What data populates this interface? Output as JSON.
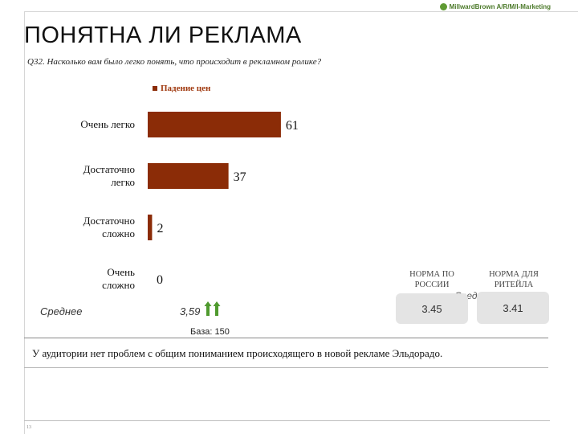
{
  "header": {
    "logo_text": "MillwardBrown A/R/M/I-Marketing",
    "title": "ПОНЯТНА ЛИ РЕКЛАМА",
    "question": "Q32. Насколько вам было легко понять, что происходит в рекламном ролике?"
  },
  "colors": {
    "bar": "#8b2c07",
    "accent_green": "#5f9a33",
    "legend_text": "#a03a10"
  },
  "chart_data": {
    "type": "bar",
    "orientation": "horizontal",
    "categories": [
      "Очень легко",
      "Достаточно легко",
      "Достаточно сложно",
      "Очень сложно"
    ],
    "series": [
      {
        "name": "Падение цен",
        "values": [
          61,
          37,
          2,
          0
        ]
      }
    ],
    "xlim": [
      0,
      100
    ],
    "grid": false,
    "legend": "top"
  },
  "average": {
    "label": "Среднее",
    "value": "3,59",
    "indicator_icon": "up-arrows-icon"
  },
  "base_text": "База: 150",
  "norms": [
    {
      "title": "НОРМА ПО РОССИИ",
      "value": "3.45"
    },
    {
      "title": "НОРМА ДЛЯ РИТЕЙЛА",
      "value": "3.41"
    }
  ],
  "norms_average_label": "Среднее",
  "conclusion": "У аудитории нет проблем с общим пониманием происходящего в новой рекламе Эльдорадо.",
  "page_number": "13"
}
